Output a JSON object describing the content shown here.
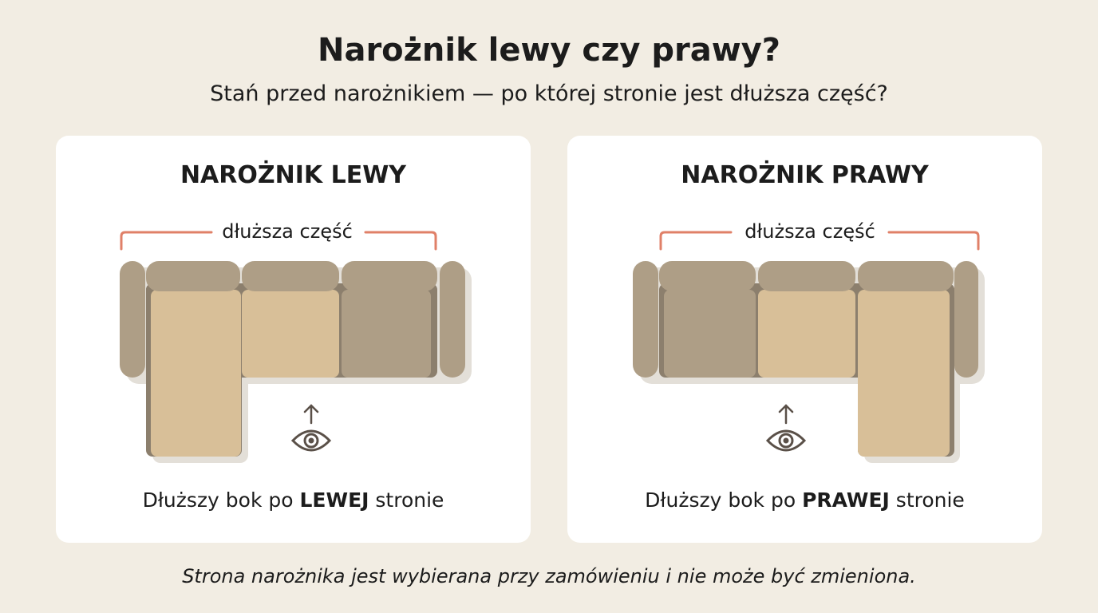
{
  "title": "Narożnik lewy czy prawy?",
  "subtitle": "Stań przed narożnikiem — po której stronie jest dłuższa część?",
  "cards": [
    {
      "heading": "NAROŻNIK LEWY",
      "bracket_label": "dłuższa część",
      "caption_pre": "Dłuższy bok po ",
      "caption_bold": "LEWEJ",
      "caption_post": " stronie",
      "chaise_side": "left"
    },
    {
      "heading": "NAROŻNIK PRAWY",
      "bracket_label": "dłuższa część",
      "caption_pre": "Dłuższy bok po ",
      "caption_bold": "PRAWEJ",
      "caption_post": " stronie",
      "chaise_side": "right"
    }
  ],
  "footer": "Strona narożnika jest wybierana przy zamówieniu i nie może być zmieniona.",
  "colors": {
    "background": "#f2ede3",
    "card": "#ffffff",
    "upholstery_dark": "#ae9e86",
    "upholstery_light": "#d8bf98",
    "bracket": "#e08068",
    "icon": "#5a5048"
  },
  "icons": [
    "arrow-up-icon",
    "eye-icon"
  ]
}
